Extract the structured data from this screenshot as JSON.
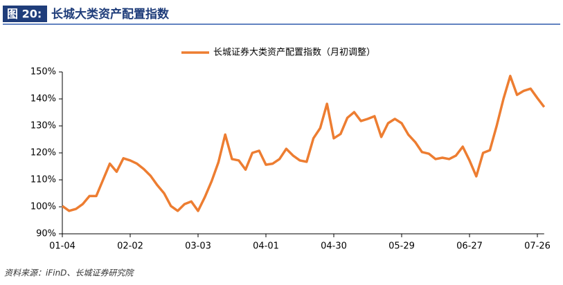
{
  "header": {
    "label": "图 20:",
    "title": "长城大类资产配置指数"
  },
  "chart_data": {
    "type": "line",
    "categories": [
      "01-04",
      null,
      null,
      null,
      null,
      null,
      null,
      null,
      null,
      null,
      "02-02",
      null,
      null,
      null,
      null,
      null,
      null,
      null,
      null,
      null,
      "03-03",
      null,
      null,
      null,
      null,
      null,
      null,
      null,
      null,
      null,
      "04-01",
      null,
      null,
      null,
      null,
      null,
      null,
      null,
      null,
      null,
      "04-30",
      null,
      null,
      null,
      null,
      null,
      null,
      null,
      null,
      null,
      "05-29",
      null,
      null,
      null,
      null,
      null,
      null,
      null,
      null,
      null,
      "06-27",
      null,
      null,
      null,
      null,
      null,
      null,
      null,
      null,
      null,
      "07-26",
      null
    ],
    "series": [
      {
        "name": "长城证券大类资产配置指数（月初调整）",
        "color": "#ED7D31",
        "values": [
          100.3,
          98.5,
          99.2,
          101,
          104,
          104,
          110,
          116,
          113,
          118,
          117.2,
          116,
          114,
          111.5,
          108,
          105,
          100.3,
          98.5,
          101,
          102,
          98.5,
          103.6,
          109.5,
          116.5,
          126.8,
          117.7,
          117.2,
          113.8,
          120,
          120.8,
          115.6,
          116,
          117.7,
          121.5,
          119,
          117.2,
          116.7,
          125.4,
          129.2,
          138.2,
          125.4,
          127,
          133,
          135.1,
          131.8,
          132.6,
          133.6,
          125.9,
          131,
          132.6,
          131,
          126.7,
          124,
          120.3,
          119.7,
          117.7,
          118.2,
          117.7,
          119,
          122.3,
          117.2,
          111.3,
          120,
          121,
          130,
          140,
          148.5,
          141.5,
          143,
          143.8,
          140.3,
          137
        ]
      }
    ],
    "ylim": [
      90,
      150
    ],
    "yticks": [
      {
        "value": 90,
        "label": "90%"
      },
      {
        "value": 100,
        "label": "100%"
      },
      {
        "value": 110,
        "label": "110%"
      },
      {
        "value": 120,
        "label": "120%"
      },
      {
        "value": 130,
        "label": "130%"
      },
      {
        "value": 140,
        "label": "140%"
      },
      {
        "value": 150,
        "label": "150%"
      }
    ],
    "legend": "top"
  },
  "footer": {
    "source": "资料来源：iFinD、长城证券研究院"
  }
}
